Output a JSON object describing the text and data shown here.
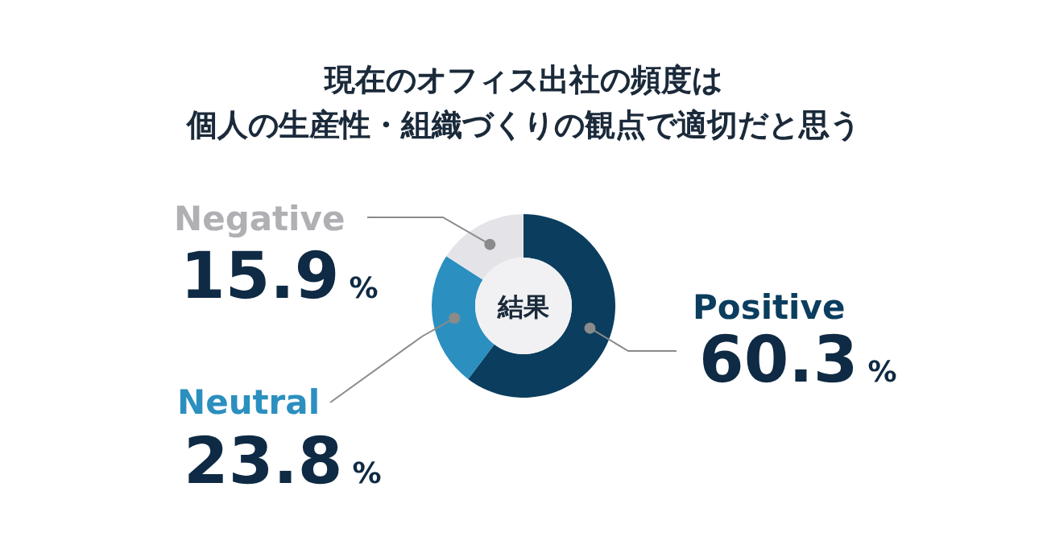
{
  "chart_data": {
    "type": "donut",
    "title": "現在のオフィス出社の頻度は個人の生産性・組織づくりの観点で適切だと思う",
    "categories": [
      "Positive",
      "Neutral",
      "Negative"
    ],
    "values": [
      60.3,
      23.8,
      15.9
    ],
    "colors": [
      "#0b3d5e",
      "#2b8fbf",
      "#e4e4e8"
    ],
    "value_labels": [
      "60.3%",
      "23.8%",
      "15.9%"
    ],
    "annotations": [
      "結果"
    ]
  }
}
